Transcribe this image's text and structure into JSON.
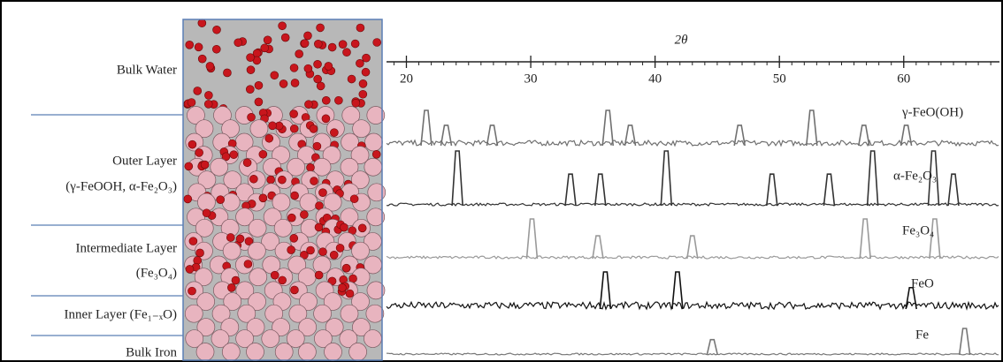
{
  "layers": [
    {
      "lines": [
        "Bulk Water"
      ]
    },
    {
      "lines": [
        "Outer Layer",
        "(γ-FeOOH, α-Fe₂O₃)"
      ]
    },
    {
      "lines": [
        "Intermediate Layer",
        "(Fe₃O₄)"
      ]
    },
    {
      "lines": [
        "Inner Layer (Fe₁₋ₓO)"
      ]
    },
    {
      "lines": [
        "Bulk Iron"
      ]
    }
  ],
  "xrd": {
    "axis_title": "2θ",
    "xlim": [
      18.4,
      67.7
    ],
    "xticks": [
      20,
      30,
      40,
      50,
      60
    ],
    "patterns": [
      {
        "name": "γ-FeO(OH)",
        "color": "#707070",
        "peaks": [
          21.6,
          23.2,
          26.9,
          36.2,
          38.0,
          46.8,
          52.6,
          56.8,
          60.2
        ]
      },
      {
        "name": "α-Fe₂O₃",
        "color": "#333333",
        "peaks": [
          24.1,
          33.2,
          35.6,
          40.9,
          49.4,
          54.0,
          57.5,
          62.4,
          64.0
        ]
      },
      {
        "name": "Fe₃O₄",
        "color": "#9a9a9a",
        "peaks": [
          30.1,
          35.4,
          43.0,
          56.9,
          62.5
        ]
      },
      {
        "name": "FeO",
        "color": "#111111",
        "peaks": [
          36.0,
          41.8,
          60.6
        ]
      },
      {
        "name": "Fe",
        "color": "#777777",
        "peaks": [
          44.6,
          64.9
        ]
      }
    ]
  }
}
